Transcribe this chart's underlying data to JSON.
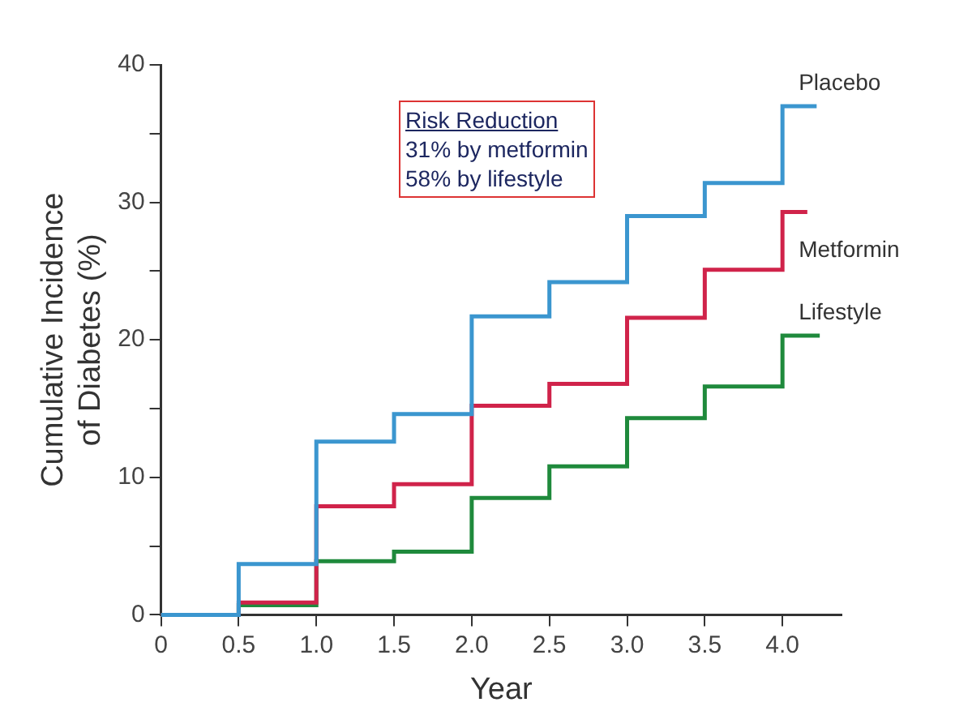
{
  "chart_data": {
    "type": "step",
    "xlabel": "Year",
    "ylabel": "Cumulative Incidence\nof Diabetes (%)",
    "xlim": [
      0,
      4.38
    ],
    "xticks": [
      0,
      0.5,
      {
        "value": 1,
        "label": "1.0"
      },
      1.5,
      {
        "value": 2,
        "label": "2.0"
      },
      2.5,
      {
        "value": 3,
        "label": "3.0"
      },
      3.5,
      {
        "value": 4,
        "label": "4.0"
      }
    ],
    "ylim": [
      0,
      40
    ],
    "yticks": [
      0,
      {
        "value": 5,
        "label": null
      },
      10,
      {
        "value": 15,
        "label": null
      },
      20,
      {
        "value": 25,
        "label": null
      },
      30,
      {
        "value": 35,
        "label": null
      },
      40
    ],
    "grid": false,
    "legend": false,
    "annotations": [
      "Risk Reduction",
      "31% by metformin",
      "58% by lifestyle"
    ],
    "series": [
      {
        "name": "Placebo",
        "color": "#3b96cf",
        "x": [
          0,
          0.5,
          1,
          1.5,
          2,
          2.5,
          3,
          3.5,
          4,
          4.22
        ],
        "values": [
          0,
          3.7,
          12.6,
          14.6,
          21.7,
          24.2,
          29,
          31.4,
          37,
          37
        ]
      },
      {
        "name": "Metformin",
        "color": "#d0234a",
        "x": [
          0,
          0.5,
          1,
          1.5,
          2,
          2.5,
          3,
          3.5,
          4,
          4.16
        ],
        "values": [
          0,
          0.9,
          7.9,
          9.5,
          15.2,
          16.8,
          21.6,
          25.1,
          29.3,
          29.3
        ]
      },
      {
        "name": "Lifestyle",
        "color": "#1f8a3c",
        "x": [
          0,
          0.5,
          1,
          1.5,
          2,
          2.5,
          3,
          3.5,
          4,
          4.24
        ],
        "values": [
          0,
          0.7,
          3.9,
          4.6,
          8.5,
          10.8,
          14.3,
          16.6,
          20.3,
          20.3
        ]
      }
    ]
  }
}
